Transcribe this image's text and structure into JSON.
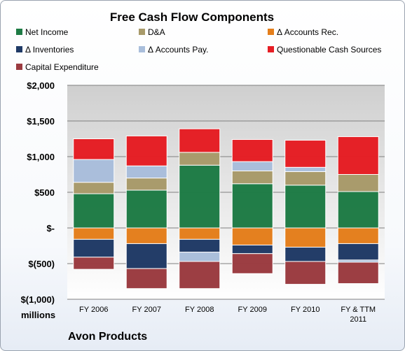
{
  "chart_data": {
    "type": "bar",
    "stacked": true,
    "title": "Free Cash Flow Components",
    "ylabel": "millions",
    "company": "Avon Products",
    "categories": [
      "FY 2006",
      "FY 2007",
      "FY 2008",
      "FY 2009",
      "FY 2010",
      "FY & TTM 2011"
    ],
    "ylim": [
      -1000,
      2000
    ],
    "yticks": [
      {
        "value": 2000,
        "label": "$2,000"
      },
      {
        "value": 1500,
        "label": "$1,500"
      },
      {
        "value": 1000,
        "label": "$1,000"
      },
      {
        "value": 500,
        "label": "$500"
      },
      {
        "value": 0,
        "label": "$-"
      },
      {
        "value": -500,
        "label": "$(500)"
      },
      {
        "value": -1000,
        "label": "$(1,000)"
      }
    ],
    "grid": true,
    "legend_position": "top",
    "series": [
      {
        "name": "Net Income",
        "color": "#1e7b45",
        "values": [
          480,
          530,
          880,
          620,
          600,
          510
        ]
      },
      {
        "name": "D&A",
        "color": "#a89a6a",
        "values": [
          160,
          170,
          180,
          180,
          190,
          240
        ]
      },
      {
        "name": "Δ Accounts Rec.",
        "color": "#e47e1b",
        "values": [
          -160,
          -220,
          -160,
          -240,
          -270,
          -220
        ]
      },
      {
        "name": "Δ Inventories",
        "color": "#1f3a66",
        "values": [
          -250,
          -350,
          -180,
          -120,
          -200,
          -230
        ]
      },
      {
        "name": "Δ Accounts Pay.",
        "color": "#a9bedb",
        "values": [
          320,
          170,
          -130,
          130,
          60,
          -30
        ]
      },
      {
        "name": "Questionable Cash Sources",
        "color": "#e61e24",
        "values": [
          290,
          420,
          330,
          310,
          380,
          530
        ]
      },
      {
        "name": "Capital Expenditure",
        "color": "#9b3b40",
        "values": [
          -170,
          -280,
          -380,
          -280,
          -320,
          -300
        ]
      }
    ]
  }
}
